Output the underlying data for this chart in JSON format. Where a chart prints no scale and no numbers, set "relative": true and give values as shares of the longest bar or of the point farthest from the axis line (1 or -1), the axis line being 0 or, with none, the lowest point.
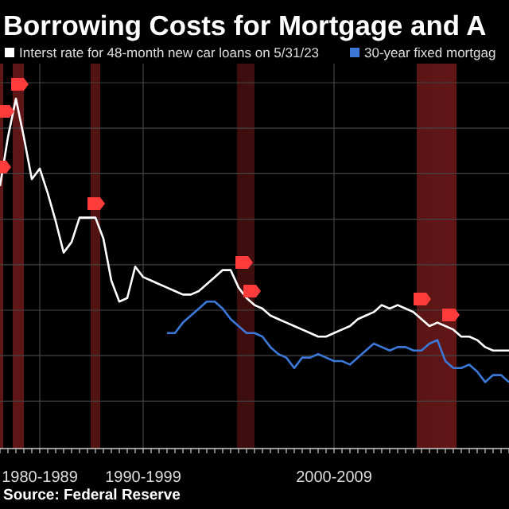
{
  "chart_data": {
    "type": "line",
    "title": "Borrowing Costs for Mortgage and A",
    "relative": true,
    "categories": [
      null,
      null,
      null,
      null,
      null,
      "1980-1989",
      null,
      null,
      null,
      null,
      null,
      null,
      null,
      null,
      null,
      null,
      null,
      null,
      "1990-1999",
      null,
      null,
      null,
      null,
      null,
      null,
      null,
      null,
      null,
      null,
      null,
      null,
      null,
      null,
      null,
      null,
      null,
      null,
      null,
      null,
      null,
      null,
      null,
      "2000-2009",
      null,
      null,
      null,
      null,
      null,
      null,
      null,
      null,
      null,
      null,
      null,
      null,
      null,
      null,
      null,
      null,
      null,
      null,
      null,
      null,
      null,
      null
    ],
    "grid": true,
    "legend": "top left",
    "series": [
      {
        "name": "Interst rate for 48-month new car loans on 5/31/23",
        "color": "#ffffff",
        "values": [
          0.75,
          0.89,
          1,
          0.89,
          0.77,
          0.8,
          0.73,
          0.65,
          0.56,
          0.59,
          0.66,
          0.66,
          0.66,
          0.6,
          0.48,
          0.42,
          0.43,
          0.52,
          0.49,
          0.48,
          0.47,
          0.46,
          0.45,
          0.44,
          0.44,
          0.45,
          0.47,
          0.49,
          0.51,
          0.51,
          0.46,
          0.43,
          0.41,
          0.4,
          0.38,
          0.37,
          0.36,
          0.35,
          0.34,
          0.33,
          0.32,
          0.32,
          0.33,
          0.34,
          0.35,
          0.37,
          0.38,
          0.39,
          0.41,
          0.4,
          0.41,
          0.4,
          0.39,
          0.37,
          0.35,
          0.36,
          0.35,
          0.34,
          0.32,
          0.32,
          0.31,
          0.29,
          0.28,
          0.28,
          0.28
        ]
      },
      {
        "name": "30-year fixed mortgag",
        "color": "#3b78d8",
        "values": [
          null,
          null,
          null,
          null,
          null,
          null,
          null,
          null,
          null,
          null,
          null,
          null,
          null,
          null,
          null,
          null,
          null,
          null,
          null,
          null,
          null,
          0.33,
          0.33,
          0.36,
          0.38,
          0.4,
          0.42,
          0.42,
          0.4,
          0.37,
          0.35,
          0.33,
          0.33,
          0.32,
          0.29,
          0.27,
          0.26,
          0.23,
          0.26,
          0.26,
          0.27,
          0.26,
          0.25,
          0.25,
          0.24,
          0.26,
          0.28,
          0.3,
          0.29,
          0.28,
          0.29,
          0.29,
          0.28,
          0.28,
          0.3,
          0.31,
          0.25,
          0.23,
          0.23,
          0.24,
          0.22,
          0.19,
          0.21,
          0.21,
          0.19
        ]
      }
    ],
    "annotations": [
      "Source: Federal Reserve"
    ]
  }
}
